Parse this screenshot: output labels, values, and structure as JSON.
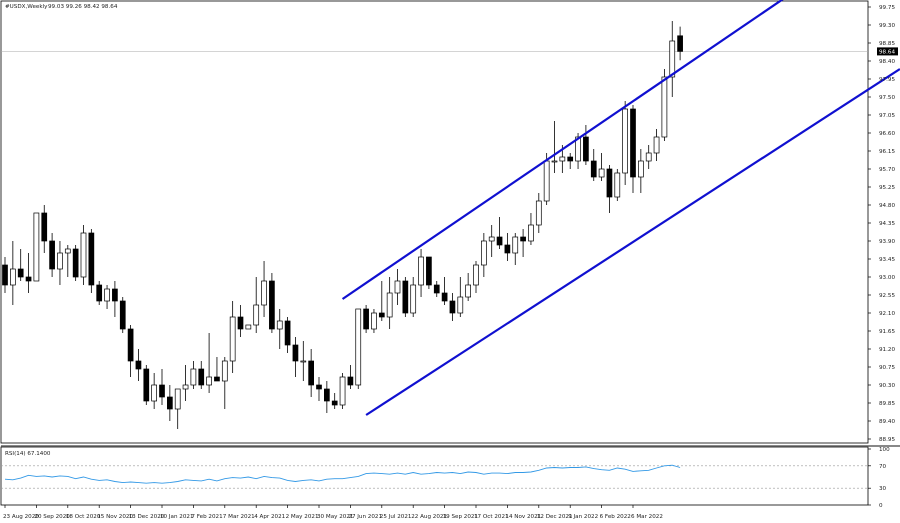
{
  "header": {
    "symbol": "#USDX,Weekly",
    "ohlc": "99.03 99.26 98.42 98.64"
  },
  "rsi_panel": {
    "label": "RSI(14) 67.1400",
    "levels": [
      70,
      30
    ],
    "tick_labels": [
      "100",
      "70",
      "30",
      "0"
    ]
  },
  "chart_data": {
    "type": "candlestick",
    "price_axis": {
      "ylim": [
        88.85,
        99.9
      ],
      "tick_labels": [
        "99.75",
        "99.30",
        "98.85",
        "98.40",
        "97.95",
        "97.50",
        "97.05",
        "96.60",
        "96.15",
        "95.70",
        "95.25",
        "94.80",
        "94.35",
        "93.90",
        "93.45",
        "93.00",
        "92.55",
        "92.10",
        "91.65",
        "91.20",
        "90.75",
        "90.30",
        "89.85",
        "89.40",
        "88.95"
      ],
      "current_price_label": "98.64"
    },
    "x_tick_labels": [
      "23 Aug 2020",
      "20 Sep 2020",
      "18 Oct 2020",
      "15 Nov 2020",
      "13 Dec 2020",
      "10 Jan 2021",
      "7 Feb 2021",
      "7 Mar 2021",
      "4 Apr 2021",
      "2 May 2021",
      "30 May 2021",
      "27 Jun 2021",
      "25 Jul 2021",
      "22 Aug 2021",
      "19 Sep 2021",
      "17 Oct 2021",
      "14 Nov 2021",
      "12 Dec 2021",
      "9 Jan 2022",
      "6 Feb 2022",
      "6 Mar 2022"
    ],
    "candles": [
      {
        "o": 93.3,
        "h": 93.5,
        "l": 92.6,
        "c": 92.8
      },
      {
        "o": 92.8,
        "h": 93.9,
        "l": 92.3,
        "c": 93.2
      },
      {
        "o": 93.2,
        "h": 93.7,
        "l": 92.9,
        "c": 93.0
      },
      {
        "o": 93.0,
        "h": 93.6,
        "l": 92.6,
        "c": 92.9
      },
      {
        "o": 92.9,
        "h": 94.6,
        "l": 92.9,
        "c": 94.6
      },
      {
        "o": 94.6,
        "h": 94.8,
        "l": 93.6,
        "c": 93.9
      },
      {
        "o": 93.9,
        "h": 94.1,
        "l": 93.0,
        "c": 93.2
      },
      {
        "o": 93.2,
        "h": 93.9,
        "l": 92.8,
        "c": 93.6
      },
      {
        "o": 93.6,
        "h": 93.8,
        "l": 93.0,
        "c": 93.7
      },
      {
        "o": 93.7,
        "h": 93.8,
        "l": 92.9,
        "c": 93.0
      },
      {
        "o": 93.0,
        "h": 94.3,
        "l": 92.8,
        "c": 94.1
      },
      {
        "o": 94.1,
        "h": 94.2,
        "l": 92.6,
        "c": 92.8
      },
      {
        "o": 92.8,
        "h": 92.9,
        "l": 92.3,
        "c": 92.4
      },
      {
        "o": 92.4,
        "h": 92.8,
        "l": 92.2,
        "c": 92.7
      },
      {
        "o": 92.7,
        "h": 92.9,
        "l": 92.0,
        "c": 92.4
      },
      {
        "o": 92.4,
        "h": 92.5,
        "l": 91.6,
        "c": 91.7
      },
      {
        "o": 91.7,
        "h": 91.8,
        "l": 90.5,
        "c": 90.9
      },
      {
        "o": 90.9,
        "h": 91.2,
        "l": 90.4,
        "c": 90.7
      },
      {
        "o": 90.7,
        "h": 90.8,
        "l": 89.8,
        "c": 89.9
      },
      {
        "o": 89.9,
        "h": 90.6,
        "l": 89.7,
        "c": 90.3
      },
      {
        "o": 90.3,
        "h": 90.7,
        "l": 89.8,
        "c": 90.0
      },
      {
        "o": 90.0,
        "h": 90.3,
        "l": 89.4,
        "c": 89.7
      },
      {
        "o": 89.7,
        "h": 90.2,
        "l": 89.2,
        "c": 90.2
      },
      {
        "o": 90.2,
        "h": 90.8,
        "l": 89.9,
        "c": 90.3
      },
      {
        "o": 90.3,
        "h": 90.9,
        "l": 90.2,
        "c": 90.7
      },
      {
        "o": 90.7,
        "h": 90.9,
        "l": 90.2,
        "c": 90.3
      },
      {
        "o": 90.3,
        "h": 91.6,
        "l": 90.1,
        "c": 90.5
      },
      {
        "o": 90.5,
        "h": 91.0,
        "l": 90.4,
        "c": 90.4
      },
      {
        "o": 90.4,
        "h": 91.0,
        "l": 89.7,
        "c": 90.9
      },
      {
        "o": 90.9,
        "h": 92.4,
        "l": 90.6,
        "c": 92.0
      },
      {
        "o": 92.0,
        "h": 92.3,
        "l": 91.5,
        "c": 91.7
      },
      {
        "o": 91.7,
        "h": 91.8,
        "l": 91.7,
        "c": 91.8
      },
      {
        "o": 91.8,
        "h": 93.0,
        "l": 91.6,
        "c": 92.3
      },
      {
        "o": 92.3,
        "h": 93.4,
        "l": 92.0,
        "c": 92.9
      },
      {
        "o": 92.9,
        "h": 93.1,
        "l": 91.6,
        "c": 91.7
      },
      {
        "o": 91.7,
        "h": 92.2,
        "l": 91.2,
        "c": 91.9
      },
      {
        "o": 91.9,
        "h": 92.0,
        "l": 91.1,
        "c": 91.3
      },
      {
        "o": 91.3,
        "h": 91.5,
        "l": 90.5,
        "c": 90.9
      },
      {
        "o": 90.9,
        "h": 91.4,
        "l": 90.4,
        "c": 90.9
      },
      {
        "o": 90.9,
        "h": 91.2,
        "l": 90.0,
        "c": 90.3
      },
      {
        "o": 90.3,
        "h": 90.5,
        "l": 89.9,
        "c": 90.2
      },
      {
        "o": 90.2,
        "h": 90.4,
        "l": 89.6,
        "c": 89.9
      },
      {
        "o": 89.9,
        "h": 90.1,
        "l": 89.7,
        "c": 89.8
      },
      {
        "o": 89.8,
        "h": 90.6,
        "l": 89.7,
        "c": 90.5
      },
      {
        "o": 90.5,
        "h": 90.8,
        "l": 90.2,
        "c": 90.3
      },
      {
        "o": 90.3,
        "h": 92.2,
        "l": 90.2,
        "c": 92.2
      },
      {
        "o": 92.2,
        "h": 92.3,
        "l": 91.6,
        "c": 91.7
      },
      {
        "o": 91.7,
        "h": 92.2,
        "l": 91.6,
        "c": 92.1
      },
      {
        "o": 92.1,
        "h": 92.9,
        "l": 91.9,
        "c": 92.0
      },
      {
        "o": 92.0,
        "h": 93.0,
        "l": 91.7,
        "c": 92.6
      },
      {
        "o": 92.6,
        "h": 93.2,
        "l": 92.3,
        "c": 92.9
      },
      {
        "o": 92.9,
        "h": 93.0,
        "l": 92.0,
        "c": 92.1
      },
      {
        "o": 92.1,
        "h": 93.0,
        "l": 92.0,
        "c": 92.8
      },
      {
        "o": 92.8,
        "h": 93.7,
        "l": 92.5,
        "c": 93.5
      },
      {
        "o": 93.5,
        "h": 93.5,
        "l": 92.7,
        "c": 92.8
      },
      {
        "o": 92.8,
        "h": 92.9,
        "l": 92.5,
        "c": 92.6
      },
      {
        "o": 92.6,
        "h": 93.0,
        "l": 92.3,
        "c": 92.4
      },
      {
        "o": 92.4,
        "h": 92.6,
        "l": 91.9,
        "c": 92.1
      },
      {
        "o": 92.1,
        "h": 93.0,
        "l": 92.0,
        "c": 92.5
      },
      {
        "o": 92.5,
        "h": 93.1,
        "l": 92.4,
        "c": 92.8
      },
      {
        "o": 92.8,
        "h": 93.4,
        "l": 92.6,
        "c": 93.3
      },
      {
        "o": 93.3,
        "h": 94.1,
        "l": 93.0,
        "c": 93.9
      },
      {
        "o": 93.9,
        "h": 94.3,
        "l": 93.5,
        "c": 94.0
      },
      {
        "o": 94.0,
        "h": 94.5,
        "l": 93.7,
        "c": 93.8
      },
      {
        "o": 93.8,
        "h": 94.1,
        "l": 93.4,
        "c": 93.6
      },
      {
        "o": 93.6,
        "h": 94.1,
        "l": 93.3,
        "c": 94.0
      },
      {
        "o": 94.0,
        "h": 94.2,
        "l": 93.5,
        "c": 93.9
      },
      {
        "o": 93.9,
        "h": 94.6,
        "l": 93.8,
        "c": 94.3
      },
      {
        "o": 94.3,
        "h": 95.1,
        "l": 94.1,
        "c": 94.9
      },
      {
        "o": 94.9,
        "h": 96.1,
        "l": 94.8,
        "c": 95.9
      },
      {
        "o": 95.9,
        "h": 96.9,
        "l": 95.6,
        "c": 95.9
      },
      {
        "o": 95.9,
        "h": 96.3,
        "l": 95.6,
        "c": 96.0
      },
      {
        "o": 96.0,
        "h": 96.1,
        "l": 95.7,
        "c": 95.9
      },
      {
        "o": 95.9,
        "h": 96.6,
        "l": 95.7,
        "c": 96.5
      },
      {
        "o": 96.5,
        "h": 96.8,
        "l": 95.8,
        "c": 95.9
      },
      {
        "o": 95.9,
        "h": 96.2,
        "l": 95.4,
        "c": 95.5
      },
      {
        "o": 95.5,
        "h": 96.1,
        "l": 95.4,
        "c": 95.7
      },
      {
        "o": 95.7,
        "h": 95.8,
        "l": 94.6,
        "c": 95.0
      },
      {
        "o": 95.0,
        "h": 95.7,
        "l": 94.9,
        "c": 95.6
      },
      {
        "o": 95.6,
        "h": 97.4,
        "l": 95.3,
        "c": 97.2
      },
      {
        "o": 97.2,
        "h": 97.3,
        "l": 95.1,
        "c": 95.5
      },
      {
        "o": 95.5,
        "h": 96.2,
        "l": 95.1,
        "c": 95.9
      },
      {
        "o": 95.9,
        "h": 96.3,
        "l": 95.7,
        "c": 96.1
      },
      {
        "o": 96.1,
        "h": 96.7,
        "l": 95.9,
        "c": 96.5
      },
      {
        "o": 96.5,
        "h": 98.2,
        "l": 96.4,
        "c": 98.0
      },
      {
        "o": 98.0,
        "h": 99.4,
        "l": 97.5,
        "c": 98.9
      },
      {
        "o": 99.03,
        "h": 99.26,
        "l": 98.42,
        "c": 98.64
      }
    ],
    "rsi": [
      46,
      45,
      48,
      53,
      51,
      52,
      50,
      52,
      51,
      47,
      50,
      46,
      44,
      45,
      42,
      40,
      41,
      40,
      39,
      40,
      39,
      40,
      42,
      45,
      44,
      43,
      46,
      43,
      47,
      49,
      48,
      50,
      47,
      51,
      49,
      48,
      44,
      42,
      44,
      45,
      43,
      46,
      47,
      47,
      49,
      51,
      56,
      57,
      56,
      55,
      57,
      55,
      58,
      55,
      56,
      58,
      57,
      58,
      56,
      59,
      58,
      55,
      57,
      57,
      56,
      58,
      58,
      59,
      62,
      66,
      67,
      66,
      67,
      67,
      68,
      65,
      63,
      62,
      66,
      64,
      60,
      61,
      62,
      66,
      70,
      71,
      67
    ],
    "channel_lines": [
      {
        "name": "upper",
        "from": {
          "candle": 43.0,
          "price": 92.45
        },
        "to": {
          "candle": 99.5,
          "price": 100.0
        }
      },
      {
        "name": "lower",
        "from": {
          "candle": 46.0,
          "price": 89.55
        },
        "to": {
          "candle": 114.0,
          "price": 98.2
        }
      }
    ],
    "colors": {
      "channel": "#1010d0",
      "rsi": "#3399e6",
      "candle_up": "#ffffff",
      "candle_down": "#000000"
    }
  }
}
